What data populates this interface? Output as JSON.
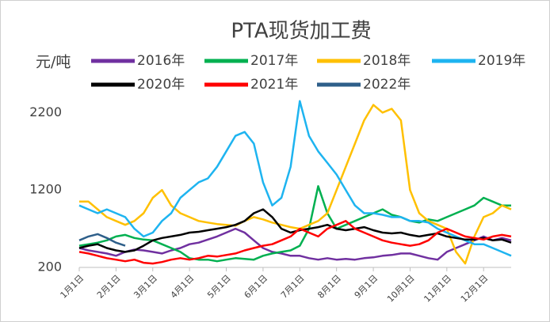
{
  "chart_data": {
    "type": "line",
    "title": "PTA现货加工费",
    "y_label": "元/吨",
    "categories": [
      "1月1日",
      null,
      null,
      null,
      "2月1日",
      null,
      null,
      null,
      "3月1日",
      null,
      null,
      null,
      "4月1日",
      null,
      null,
      null,
      "5月1日",
      null,
      null,
      null,
      "6月1日",
      null,
      null,
      null,
      "7月1日",
      null,
      null,
      null,
      "8月1日",
      null,
      null,
      null,
      "9月1日",
      null,
      null,
      null,
      "10月1日",
      null,
      null,
      null,
      "11月1日",
      null,
      null,
      null,
      "12月1日",
      null,
      null,
      null
    ],
    "series": [
      {
        "name": "2016年",
        "color": "#7030a0",
        "values": [
          450,
          420,
          400,
          380,
          350,
          400,
          430,
          420,
          400,
          380,
          420,
          450,
          500,
          520,
          560,
          600,
          650,
          700,
          650,
          550,
          450,
          400,
          380,
          350,
          350,
          320,
          300,
          320,
          300,
          310,
          300,
          320,
          330,
          350,
          360,
          380,
          380,
          350,
          320,
          300,
          400,
          450,
          500,
          550,
          600,
          550,
          580,
          550
        ]
      },
      {
        "name": "2017年",
        "color": "#00b050",
        "values": [
          480,
          500,
          520,
          550,
          600,
          620,
          580,
          560,
          550,
          500,
          450,
          400,
          320,
          300,
          300,
          280,
          300,
          320,
          310,
          300,
          350,
          380,
          400,
          420,
          480,
          700,
          1250,
          900,
          700,
          750,
          800,
          850,
          900,
          950,
          880,
          850,
          800,
          780,
          820,
          800,
          850,
          900,
          950,
          1000,
          1100,
          1050,
          1000,
          1000
        ]
      },
      {
        "name": "2018年",
        "color": "#ffc000",
        "values": [
          1050,
          1050,
          950,
          850,
          800,
          750,
          800,
          900,
          1100,
          1200,
          1000,
          900,
          850,
          800,
          780,
          760,
          750,
          740,
          800,
          850,
          820,
          780,
          750,
          720,
          700,
          750,
          800,
          900,
          1200,
          1500,
          1800,
          2100,
          2300,
          2200,
          2250,
          2100,
          1200,
          900,
          800,
          750,
          700,
          400,
          250,
          600,
          850,
          900,
          1000,
          950
        ]
      },
      {
        "name": "2019年",
        "color": "#1eb4f0",
        "values": [
          1000,
          950,
          900,
          950,
          900,
          850,
          700,
          600,
          650,
          800,
          900,
          1100,
          1200,
          1300,
          1350,
          1500,
          1700,
          1900,
          1950,
          1800,
          1300,
          1000,
          1100,
          1500,
          2350,
          1900,
          1700,
          1550,
          1400,
          1200,
          1000,
          900,
          900,
          880,
          850,
          850,
          800,
          800,
          780,
          700,
          650,
          600,
          550,
          500,
          500,
          450,
          400,
          350
        ]
      },
      {
        "name": "2020年",
        "color": "#000000",
        "values": [
          450,
          480,
          500,
          450,
          420,
          400,
          420,
          480,
          550,
          580,
          600,
          620,
          650,
          660,
          680,
          700,
          720,
          750,
          800,
          900,
          950,
          850,
          700,
          650,
          680,
          700,
          720,
          750,
          700,
          680,
          700,
          720,
          680,
          650,
          640,
          650,
          620,
          600,
          620,
          640,
          600,
          580,
          560,
          560,
          580,
          550,
          560,
          520
        ]
      },
      {
        "name": "2021年",
        "color": "#ff0000",
        "values": [
          400,
          380,
          350,
          320,
          300,
          280,
          300,
          260,
          250,
          270,
          300,
          320,
          300,
          320,
          350,
          340,
          360,
          380,
          420,
          450,
          480,
          500,
          550,
          600,
          700,
          650,
          600,
          700,
          750,
          800,
          700,
          650,
          600,
          550,
          520,
          500,
          480,
          500,
          550,
          650,
          700,
          650,
          600,
          580,
          560,
          600,
          620,
          600
        ]
      },
      {
        "name": "2022年",
        "color": "#2e5f8a",
        "values": [
          550,
          600,
          630,
          580,
          520,
          480,
          null,
          null,
          null,
          null,
          null,
          null,
          null,
          null,
          null,
          null,
          null,
          null,
          null,
          null,
          null,
          null,
          null,
          null,
          null,
          null,
          null,
          null,
          null,
          null,
          null,
          null,
          null,
          null,
          null,
          null,
          null,
          null,
          null,
          null,
          null,
          null,
          null,
          null,
          null,
          null,
          null,
          null
        ]
      }
    ],
    "ylim": [
      200,
      2500
    ],
    "yticks": [
      200,
      1200,
      2200
    ],
    "grid": false
  }
}
